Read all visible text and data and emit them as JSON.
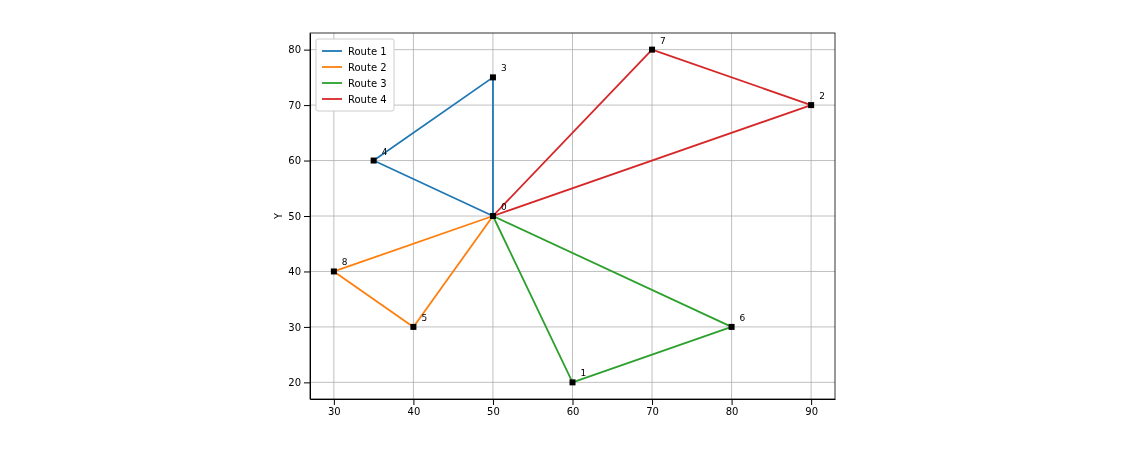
{
  "chart_data": {
    "type": "line",
    "ylabel": "Y",
    "xlim": [
      27,
      93
    ],
    "ylim": [
      17,
      83
    ],
    "xticks": [
      30,
      40,
      50,
      60,
      70,
      80,
      90
    ],
    "yticks": [
      20,
      30,
      40,
      50,
      60,
      70,
      80
    ],
    "grid": true,
    "legend": "top left",
    "line_style": "solid",
    "series": [
      {
        "name": "Route 1",
        "color": "#1f77b4",
        "x": [
          35,
          50
        ],
        "values": [
          60,
          50
        ]
      },
      {
        "color": "#1f77b4",
        "x": [
          35,
          50
        ],
        "values": [
          60,
          75
        ]
      },
      {
        "color": "#1f77b4",
        "x": [
          50,
          50
        ],
        "values": [
          75,
          50
        ]
      },
      {
        "name": "Route 2",
        "color": "#ff7f0e",
        "x": [
          30,
          50
        ],
        "values": [
          40,
          50
        ]
      },
      {
        "color": "#ff7f0e",
        "x": [
          30,
          40
        ],
        "values": [
          40,
          30
        ]
      },
      {
        "color": "#ff7f0e",
        "x": [
          40,
          50
        ],
        "values": [
          30,
          50
        ]
      },
      {
        "name": "Route 3",
        "color": "#2ca02c",
        "x": [
          50,
          60
        ],
        "values": [
          50,
          20
        ]
      },
      {
        "color": "#2ca02c",
        "x": [
          60,
          80
        ],
        "values": [
          20,
          30
        ]
      },
      {
        "color": "#2ca02c",
        "x": [
          50,
          80
        ],
        "values": [
          50,
          30
        ]
      },
      {
        "name": "Route 4",
        "color": "#d62728",
        "x": [
          50,
          70
        ],
        "values": [
          50,
          80
        ]
      },
      {
        "color": "#d62728",
        "x": [
          70,
          90
        ],
        "values": [
          80,
          70
        ]
      },
      {
        "color": "#d62728",
        "x": [
          50,
          90
        ],
        "values": [
          50,
          70
        ]
      },
      {
        "type": "scatter",
        "marker": "square",
        "color": "#000000",
        "x": [
          50,
          60,
          90,
          50,
          35,
          40,
          80,
          70,
          30
        ],
        "values": [
          50,
          20,
          70,
          75,
          60,
          30,
          30,
          80,
          40
        ]
      }
    ],
    "annotations": [
      {
        "text": "0",
        "x": 50,
        "y": 50
      },
      {
        "text": "1",
        "x": 60,
        "y": 20
      },
      {
        "text": "2",
        "x": 90,
        "y": 70
      },
      {
        "text": "3",
        "x": 50,
        "y": 75
      },
      {
        "text": "4",
        "x": 35,
        "y": 60
      },
      {
        "text": "5",
        "x": 40,
        "y": 30
      },
      {
        "text": "6",
        "x": 80,
        "y": 30
      },
      {
        "text": "7",
        "x": 70,
        "y": 80
      },
      {
        "text": "8",
        "x": 30,
        "y": 40
      }
    ]
  }
}
